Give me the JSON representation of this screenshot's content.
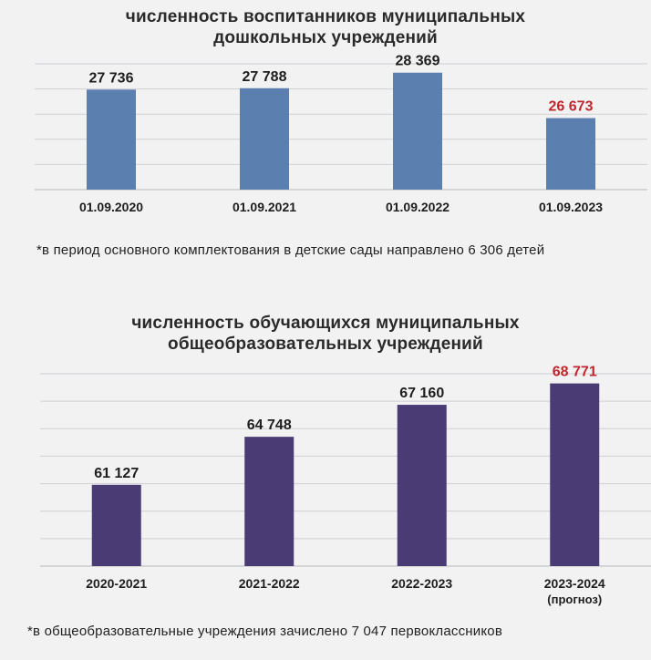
{
  "chart_data": [
    {
      "type": "bar",
      "title": "численность воспитанников муниципальных дошкольных учреждений",
      "title_lines": [
        "численность воспитанников муниципальных",
        "дошкольных учреждений"
      ],
      "categories": [
        "01.09.2020",
        "01.09.2021",
        "01.09.2022",
        "01.09.2023"
      ],
      "values": [
        27736,
        27788,
        28369,
        26673
      ],
      "value_labels": [
        "27 736",
        "27 788",
        "28 369",
        "26 673"
      ],
      "ylim": [
        24000,
        28700
      ],
      "grid": true,
      "bar_color": "#5b7fae",
      "highlight_index": 3,
      "highlight_label_color": "#c0272d",
      "label_color": "#1e1e1e",
      "note": "*в период основного комплектования в детские сады направлено 6 306 детей"
    },
    {
      "type": "bar",
      "title": "численность обучающихся муниципальных общеобразовательных учреждений",
      "title_lines": [
        "численность обучающихся муниципальных",
        "общеобразовательных учреждений"
      ],
      "categories": [
        "2020-2021",
        "2021-2022",
        "2022-2023",
        "2023-2024"
      ],
      "category_sublabels": [
        "",
        "",
        "",
        "(прогноз)"
      ],
      "values": [
        61127,
        64748,
        67160,
        68771
      ],
      "value_labels": [
        "61 127",
        "64 748",
        "67 160",
        "68 771"
      ],
      "ylim": [
        55000,
        69500
      ],
      "grid": true,
      "bar_color": "#4a3b74",
      "highlight_index": 3,
      "highlight_label_color": "#c0272d",
      "label_color": "#1e1e1e",
      "note": "*в общеобразовательные учреждения зачислено 7 047 первоклассников"
    }
  ]
}
